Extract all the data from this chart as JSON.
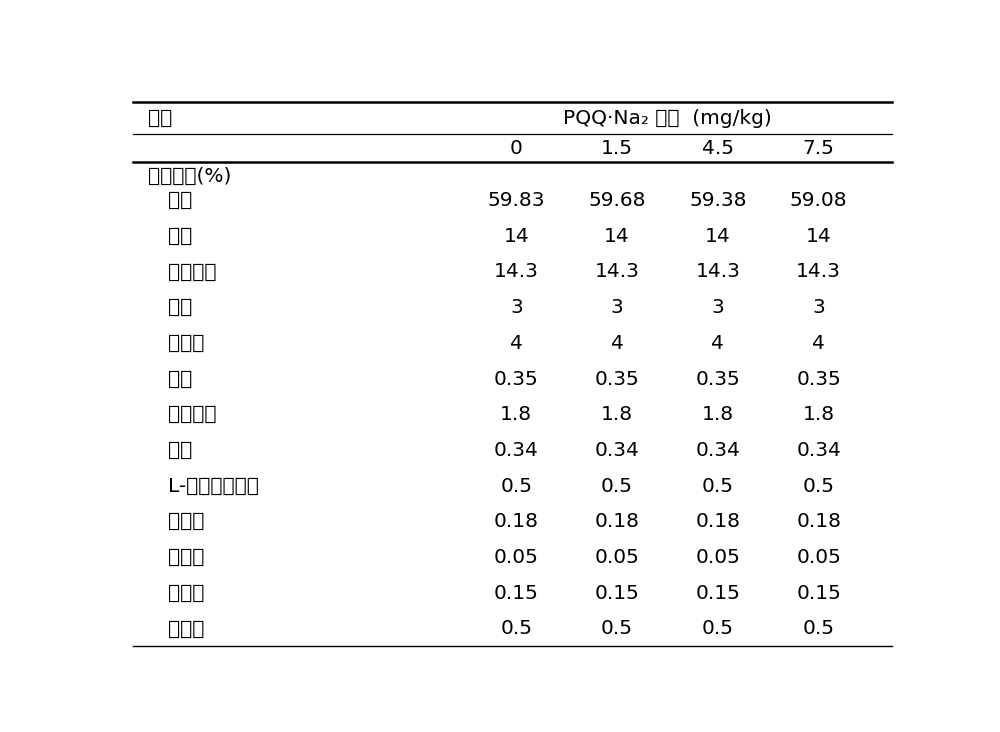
{
  "header_left": "项目",
  "header_right": "PQQ·Na₂ 水平  (mg/kg)",
  "subheaders": [
    "0",
    "1.5",
    "4.5",
    "7.5"
  ],
  "section_label": "日粮成分(%)",
  "rows": [
    [
      "玉米",
      "59.83",
      "59.68",
      "59.38",
      "59.08"
    ],
    [
      "豆箕",
      "14",
      "14",
      "14",
      "14"
    ],
    [
      "膨化大豆",
      "14.3",
      "14.3",
      "14.3",
      "14.3"
    ],
    [
      "鱼粉",
      "3",
      "3",
      "3",
      "3"
    ],
    [
      "乳清粉",
      "4",
      "4",
      "4",
      "4"
    ],
    [
      "石粉",
      "0.35",
      "0.35",
      "0.35",
      "0.35"
    ],
    [
      "磷酸氢馒",
      "1.8",
      "1.8",
      "1.8",
      "1.8"
    ],
    [
      "食盐",
      "0.34",
      "0.34",
      "0.34",
      "0.34"
    ],
    [
      "L-赖氨酸盐酸盐",
      "0.5",
      "0.5",
      "0.5",
      "0.5"
    ],
    [
      "苏氨酸",
      "0.18",
      "0.18",
      "0.18",
      "0.18"
    ],
    [
      "色氨酸",
      "0.05",
      "0.05",
      "0.05",
      "0.05"
    ],
    [
      "蛋氨酸",
      "0.15",
      "0.15",
      "0.15",
      "0.15"
    ],
    [
      "葡萄糖",
      "0.5",
      "0.5",
      "0.5",
      "0.5"
    ]
  ],
  "bg_color": "#ffffff",
  "text_color": "#000000",
  "font_size": 14.5,
  "fig_width": 10.0,
  "fig_height": 7.32
}
